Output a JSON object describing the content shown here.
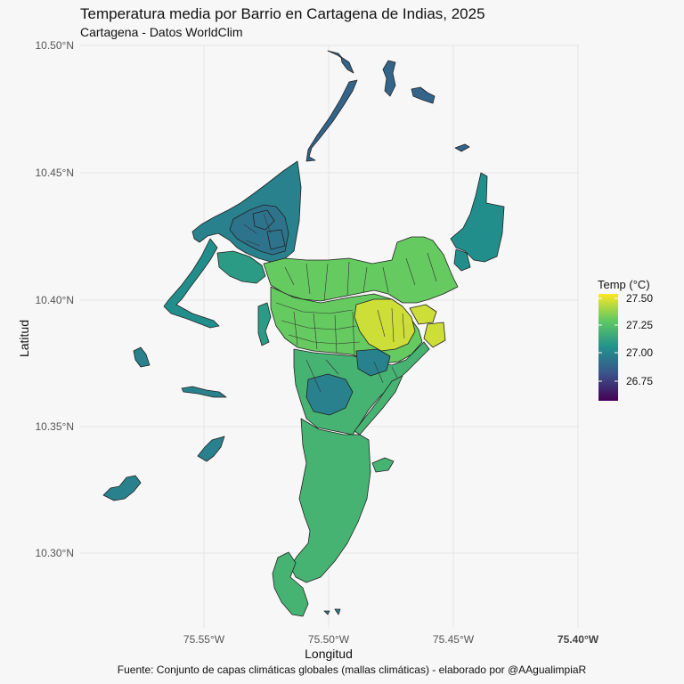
{
  "title": "Temperatura media por Barrio en Cartagena de Indias, 2025",
  "subtitle": "Cartagena - Datos WorldClim",
  "caption": "Fuente: Conjunto de capas climáticas globales (mallas climáticas) - elaborado por @AAgualimpiaR",
  "axes": {
    "xlabel": "Longitud",
    "ylabel": "Latitud",
    "x_ticks": [
      "75.55°W",
      "75.50°W",
      "75.45°W",
      "75.40°W"
    ],
    "y_ticks": [
      "10.50°N",
      "10.45°N",
      "10.40°N",
      "10.35°N",
      "10.30°N"
    ]
  },
  "legend": {
    "title": "Temp (°C)",
    "labels": [
      "27.50",
      "27.25",
      "27.00",
      "26.75"
    ],
    "range": [
      26.6,
      27.52
    ],
    "colors": [
      "#440154",
      "#3b528b",
      "#21918c",
      "#5ec962",
      "#fde725"
    ]
  },
  "chart_data": {
    "type": "choropleth",
    "title": "Temperatura media por Barrio en Cartagena de Indias, 2025",
    "subtitle": "Cartagena - Datos WorldClim",
    "xlabel": "Longitud",
    "ylabel": "Latitud",
    "xlim": [
      -75.6,
      -75.4
    ],
    "ylim": [
      10.27,
      10.5
    ],
    "grid": true,
    "legend_position": "right",
    "value_range": [
      26.6,
      27.52
    ],
    "regions": [
      {
        "id": "islands-north",
        "temp": 26.9
      },
      {
        "id": "north-tail",
        "temp": 26.9
      },
      {
        "id": "north-zone",
        "temp": 27.0
      },
      {
        "id": "north-core",
        "temp": 26.95
      },
      {
        "id": "coastal-strip",
        "temp": 27.05
      },
      {
        "id": "west-bocagrande",
        "temp": 27.1
      },
      {
        "id": "east-block",
        "temp": 27.05
      },
      {
        "id": "center-north",
        "temp": 27.3
      },
      {
        "id": "center",
        "temp": 27.3
      },
      {
        "id": "center-east-hot",
        "temp": 27.45
      },
      {
        "id": "center-south",
        "temp": 27.2
      },
      {
        "id": "blue-pocket",
        "temp": 27.0
      },
      {
        "id": "south-large",
        "temp": 27.2
      },
      {
        "id": "small-west-islands",
        "temp": 27.0
      }
    ]
  }
}
